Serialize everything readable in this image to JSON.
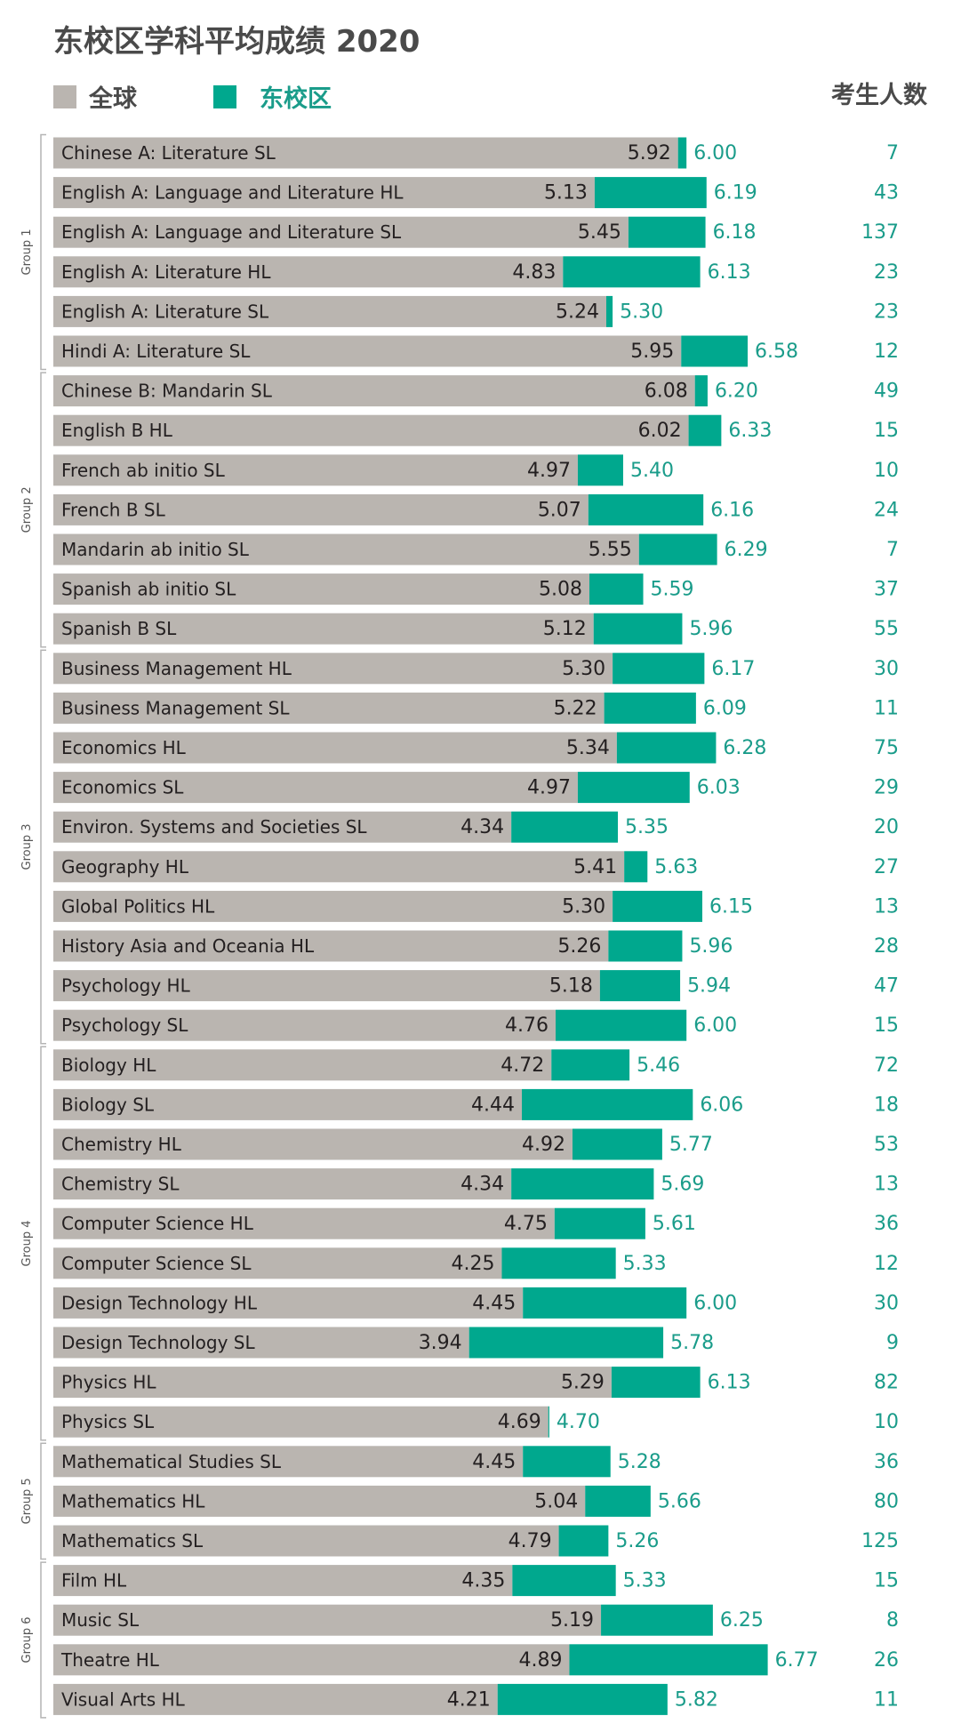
{
  "title": "东校区学科平均成绩 2020",
  "legend": [
    {
      "name": "全球",
      "color": "#bab5b0"
    },
    {
      "name": "东校区",
      "color": "#00a88e"
    }
  ],
  "count_header": "考生人数",
  "colors": {
    "global": "#bab5b0",
    "campus": "#00a88e",
    "campus_text": "#1a9c8a",
    "text": "#231f20",
    "title": "#4a4a4a",
    "bracket": "#b4b4b4"
  },
  "chart_data": {
    "type": "bar",
    "value_range": [
      0,
      7.2
    ],
    "grid": false,
    "legend_position": "top-left",
    "series": [
      {
        "name": "全球",
        "key": "global"
      },
      {
        "name": "东校区",
        "key": "campus"
      }
    ],
    "groups": [
      {
        "label": "Group 1",
        "subjects": [
          {
            "name": "Chinese A: Literature SL",
            "global": 5.92,
            "campus": 6.0,
            "count": 7
          },
          {
            "name": "English A: Language and Literature HL",
            "global": 5.13,
            "campus": 6.19,
            "count": 43
          },
          {
            "name": "English A: Language and Literature SL",
            "global": 5.45,
            "campus": 6.18,
            "count": 137
          },
          {
            "name": "English A: Literature HL",
            "global": 4.83,
            "campus": 6.13,
            "count": 23
          },
          {
            "name": "English A: Literature SL",
            "global": 5.24,
            "campus": 5.3,
            "count": 23
          },
          {
            "name": "Hindi A: Literature SL",
            "global": 5.95,
            "campus": 6.58,
            "count": 12
          }
        ]
      },
      {
        "label": "Group 2",
        "subjects": [
          {
            "name": "Chinese B: Mandarin SL",
            "global": 6.08,
            "campus": 6.2,
            "count": 49
          },
          {
            "name": "English B HL",
            "global": 6.02,
            "campus": 6.33,
            "count": 15
          },
          {
            "name": "French ab initio SL",
            "global": 4.97,
            "campus": 5.4,
            "count": 10
          },
          {
            "name": "French B SL",
            "global": 5.07,
            "campus": 6.16,
            "count": 24
          },
          {
            "name": "Mandarin ab initio SL",
            "global": 5.55,
            "campus": 6.29,
            "count": 7
          },
          {
            "name": "Spanish ab initio SL",
            "global": 5.08,
            "campus": 5.59,
            "count": 37
          },
          {
            "name": "Spanish B SL",
            "global": 5.12,
            "campus": 5.96,
            "count": 55
          }
        ]
      },
      {
        "label": "Group 3",
        "subjects": [
          {
            "name": "Business Management HL",
            "global": 5.3,
            "campus": 6.17,
            "count": 30
          },
          {
            "name": "Business Management SL",
            "global": 5.22,
            "campus": 6.09,
            "count": 11
          },
          {
            "name": "Economics HL",
            "global": 5.34,
            "campus": 6.28,
            "count": 75
          },
          {
            "name": "Economics SL",
            "global": 4.97,
            "campus": 6.03,
            "count": 29
          },
          {
            "name": "Environ. Systems and Societies SL",
            "global": 4.34,
            "campus": 5.35,
            "count": 20
          },
          {
            "name": "Geography HL",
            "global": 5.41,
            "campus": 5.63,
            "count": 27
          },
          {
            "name": "Global Politics HL",
            "global": 5.3,
            "campus": 6.15,
            "count": 13
          },
          {
            "name": "History Asia and Oceania HL",
            "global": 5.26,
            "campus": 5.96,
            "count": 28
          },
          {
            "name": "Psychology HL",
            "global": 5.18,
            "campus": 5.94,
            "count": 47
          },
          {
            "name": "Psychology SL",
            "global": 4.76,
            "campus": 6.0,
            "count": 15
          }
        ]
      },
      {
        "label": "Group 4",
        "subjects": [
          {
            "name": "Biology HL",
            "global": 4.72,
            "campus": 5.46,
            "count": 72
          },
          {
            "name": "Biology SL",
            "global": 4.44,
            "campus": 6.06,
            "count": 18
          },
          {
            "name": "Chemistry HL",
            "global": 4.92,
            "campus": 5.77,
            "count": 53
          },
          {
            "name": "Chemistry SL",
            "global": 4.34,
            "campus": 5.69,
            "count": 13
          },
          {
            "name": "Computer Science HL",
            "global": 4.75,
            "campus": 5.61,
            "count": 36
          },
          {
            "name": "Computer Science SL",
            "global": 4.25,
            "campus": 5.33,
            "count": 12
          },
          {
            "name": "Design Technology HL",
            "global": 4.45,
            "campus": 6.0,
            "count": 30
          },
          {
            "name": "Design Technology SL",
            "global": 3.94,
            "campus": 5.78,
            "count": 9
          },
          {
            "name": "Physics HL",
            "global": 5.29,
            "campus": 6.13,
            "count": 82
          },
          {
            "name": "Physics SL",
            "global": 4.69,
            "campus": 4.7,
            "count": 10
          }
        ]
      },
      {
        "label": "Group 5",
        "subjects": [
          {
            "name": "Mathematical Studies SL",
            "global": 4.45,
            "campus": 5.28,
            "count": 36
          },
          {
            "name": "Mathematics HL",
            "global": 5.04,
            "campus": 5.66,
            "count": 80
          },
          {
            "name": "Mathematics SL",
            "global": 4.79,
            "campus": 5.26,
            "count": 125
          }
        ]
      },
      {
        "label": "Group 6",
        "subjects": [
          {
            "name": "Film HL",
            "global": 4.35,
            "campus": 5.33,
            "count": 15
          },
          {
            "name": "Music SL",
            "global": 5.19,
            "campus": 6.25,
            "count": 8
          },
          {
            "name": "Theatre HL",
            "global": 4.89,
            "campus": 6.77,
            "count": 26
          },
          {
            "name": "Visual Arts HL",
            "global": 4.21,
            "campus": 5.82,
            "count": 11
          }
        ]
      }
    ]
  }
}
